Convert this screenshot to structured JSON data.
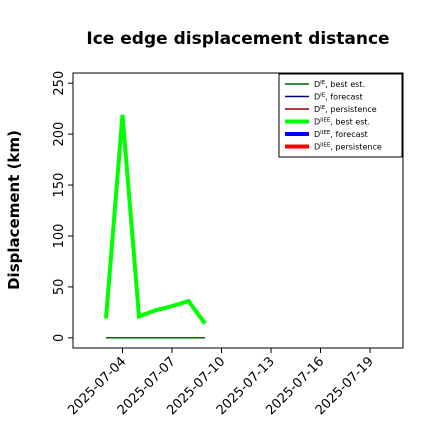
{
  "chart_data": {
    "type": "line",
    "title": "Ice edge displacement distance",
    "xlabel": "",
    "ylabel": "Displacement (km)",
    "x_ticks": [
      "2025-07-04",
      "2025-07-07",
      "2025-07-10",
      "2025-07-13",
      "2025-07-16",
      "2025-07-19"
    ],
    "x_tick_colors": [
      "#000000",
      "#000000",
      "#228B22",
      "#000000",
      "#000000",
      "#000000"
    ],
    "x_range": [
      "2025-07-01",
      "2025-07-21"
    ],
    "y_ticks": [
      0,
      50,
      100,
      150,
      200,
      250
    ],
    "ylim": [
      -10,
      260
    ],
    "grid": false,
    "legend_position": "top-right",
    "legend": [
      {
        "base": "D",
        "sup": "IE",
        "suffix": ", best est.",
        "color": "#006400",
        "width": 1.5
      },
      {
        "base": "D",
        "sup": "IE",
        "suffix": ", forecast",
        "color": "#00008B",
        "width": 1.5
      },
      {
        "base": "D",
        "sup": "IE",
        "suffix": ", persistence",
        "color": "#8B0000",
        "width": 1.5
      },
      {
        "base": "D",
        "sup": "IIEE",
        "suffix": ", best est.",
        "color": "#00FF00",
        "width": 4
      },
      {
        "base": "D",
        "sup": "IIEE",
        "suffix": ", forecast",
        "color": "#0000FF",
        "width": 4
      },
      {
        "base": "D",
        "sup": "IIEE",
        "suffix": ", persistence",
        "color": "#FF0000",
        "width": 4
      }
    ],
    "series": [
      {
        "color": "#00FF00",
        "width": 4,
        "x": [
          "2025-07-03",
          "2025-07-04",
          "2025-07-05",
          "2025-07-06",
          "2025-07-07",
          "2025-07-08",
          "2025-07-09"
        ],
        "values": [
          19,
          219,
          21,
          27,
          31,
          36,
          14
        ]
      },
      {
        "color": "#006400",
        "width": 1.5,
        "x": [
          "2025-07-03",
          "2025-07-04",
          "2025-07-05",
          "2025-07-06",
          "2025-07-07",
          "2025-07-08",
          "2025-07-09"
        ],
        "values": [
          0,
          0,
          0,
          0,
          0,
          0,
          0
        ]
      }
    ]
  }
}
